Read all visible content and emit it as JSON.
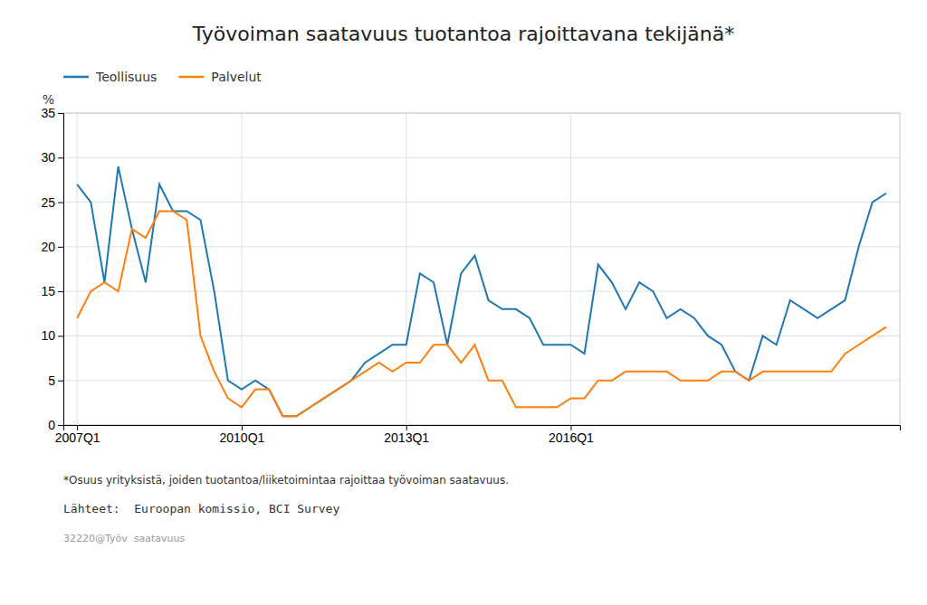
{
  "chart_data": {
    "type": "line",
    "title": "Työvoiman saatavuus tuotantoa rajoittavana tekijänä*",
    "y_label": "%",
    "footnotes": [
      "*Osuus yrityksistä, joiden tuotantoa/liiketoimintaa rajoittaa työvoiman saatavuus.",
      "Lähteet:  Euroopan komissio, BCI Survey",
      "32220@Työv  saatavuus"
    ],
    "categories": [
      "2007Q1",
      null,
      null,
      null,
      null,
      null,
      null,
      null,
      null,
      null,
      null,
      null,
      "2010Q1",
      null,
      null,
      null,
      null,
      null,
      null,
      null,
      null,
      null,
      null,
      null,
      "2013Q1",
      null,
      null,
      null,
      null,
      null,
      null,
      null,
      null,
      null,
      null,
      null,
      "2016Q1",
      null,
      null,
      null,
      null,
      null,
      null,
      null,
      null,
      null,
      null,
      null,
      null,
      null,
      null,
      null,
      null,
      null,
      null,
      null,
      null,
      null,
      null,
      null
    ],
    "series": [
      {
        "name": "Teollisuus",
        "values": [
          27,
          25,
          16,
          29,
          22,
          16,
          27,
          24,
          24,
          23,
          15,
          5,
          4,
          5,
          4,
          1,
          1,
          2,
          3,
          4,
          5,
          7,
          8,
          9,
          9,
          17,
          16,
          9,
          17,
          19,
          14,
          13,
          13,
          12,
          9,
          9,
          9,
          8,
          18,
          16,
          13,
          16,
          15,
          12,
          13,
          12,
          10,
          9,
          6,
          5,
          10,
          9,
          14,
          13,
          12,
          13,
          14,
          20,
          25,
          26
        ]
      },
      {
        "name": "Palvelut",
        "values": [
          12,
          15,
          16,
          15,
          22,
          21,
          24,
          24,
          23,
          10,
          6,
          3,
          2,
          4,
          4,
          1,
          1,
          2,
          3,
          4,
          5,
          6,
          7,
          6,
          7,
          7,
          9,
          9,
          7,
          9,
          5,
          5,
          2,
          2,
          2,
          2,
          3,
          3,
          5,
          5,
          6,
          6,
          6,
          6,
          5,
          5,
          5,
          6,
          6,
          5,
          6,
          6,
          6,
          6,
          6,
          6,
          8,
          9,
          10,
          11
        ]
      }
    ],
    "ylim": [
      0,
      35
    ],
    "yticks": [
      0,
      5,
      10,
      15,
      20,
      25,
      30,
      35
    ],
    "grid": true
  }
}
